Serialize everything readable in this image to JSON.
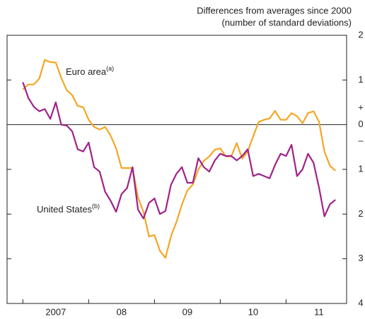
{
  "chart_data": {
    "type": "line",
    "subtitle_lines": [
      "Differences from averages since 2000",
      "(number of standard deviations)"
    ],
    "sign_labels": [
      "+",
      "–"
    ],
    "x": [
      2007,
      2007.083,
      2007.167,
      2007.25,
      2007.333,
      2007.417,
      2007.5,
      2007.583,
      2007.667,
      2007.75,
      2007.833,
      2007.917,
      2008,
      2008.083,
      2008.167,
      2008.25,
      2008.333,
      2008.417,
      2008.5,
      2008.583,
      2008.667,
      2008.75,
      2008.833,
      2008.917,
      2009,
      2009.083,
      2009.167,
      2009.25,
      2009.333,
      2009.417,
      2009.5,
      2009.583,
      2009.667,
      2009.75,
      2009.833,
      2009.917,
      2010,
      2010.083,
      2010.167,
      2010.25,
      2010.333,
      2010.417,
      2010.5,
      2010.583,
      2010.667,
      2010.75,
      2010.833,
      2010.917,
      2011,
      2011.083,
      2011.167,
      2011.25,
      2011.333,
      2011.417,
      2011.5,
      2011.583,
      2011.667,
      2011.75
    ],
    "series": [
      {
        "name": "Euro area",
        "note": "(a)",
        "color": "#f5a623",
        "values": [
          0.79,
          0.9,
          0.9,
          1.03,
          1.45,
          1.4,
          1.39,
          1.05,
          0.77,
          0.66,
          0.42,
          0.39,
          0.11,
          -0.05,
          -0.11,
          -0.05,
          -0.24,
          -0.53,
          -0.97,
          -0.97,
          -0.97,
          -1.63,
          -1.95,
          -2.5,
          -2.47,
          -2.82,
          -2.98,
          -2.5,
          -2.18,
          -1.79,
          -1.47,
          -1.34,
          -1.0,
          -0.81,
          -0.71,
          -0.56,
          -0.53,
          -0.71,
          -0.71,
          -0.41,
          -0.76,
          -0.6,
          -0.26,
          0.06,
          0.11,
          0.14,
          0.31,
          0.11,
          0.11,
          0.26,
          0.19,
          0.03,
          0.26,
          0.3,
          0.07,
          -0.6,
          -0.92,
          -1.03
        ]
      },
      {
        "name": "United States",
        "note": "(b)",
        "color": "#a0228a",
        "values": [
          0.95,
          0.6,
          0.4,
          0.3,
          0.35,
          0.13,
          0.5,
          0.0,
          -0.02,
          -0.15,
          -0.55,
          -0.6,
          -0.4,
          -0.95,
          -1.05,
          -1.5,
          -1.7,
          -1.95,
          -1.55,
          -1.42,
          -0.95,
          -1.9,
          -2.1,
          -1.75,
          -1.65,
          -2.0,
          -1.93,
          -1.35,
          -1.1,
          -0.95,
          -1.3,
          -1.3,
          -0.75,
          -0.95,
          -1.05,
          -0.8,
          -0.65,
          -0.7,
          -0.7,
          -0.8,
          -0.7,
          -0.55,
          -1.15,
          -1.1,
          -1.15,
          -1.2,
          -0.9,
          -0.65,
          -0.7,
          -0.45,
          -1.15,
          -1.0,
          -0.65,
          -0.85,
          -1.4,
          -2.05,
          -1.78,
          -1.68
        ]
      }
    ],
    "xlim": [
      2006.76,
      2011.92
    ],
    "xticks": [
      {
        "value": 2007.5,
        "label": "2007"
      },
      {
        "value": 2008.5,
        "label": "08"
      },
      {
        "value": 2009.5,
        "label": "09"
      },
      {
        "value": 2010.5,
        "label": "10"
      },
      {
        "value": 2011.5,
        "label": "11"
      }
    ],
    "ylim": [
      -4,
      2
    ],
    "yticks": [
      2,
      1,
      0,
      {
        "value": -1,
        "label": "1"
      },
      {
        "value": -2,
        "label": "2"
      },
      {
        "value": -3,
        "label": "3"
      },
      {
        "value": -4,
        "label": "4"
      }
    ]
  }
}
